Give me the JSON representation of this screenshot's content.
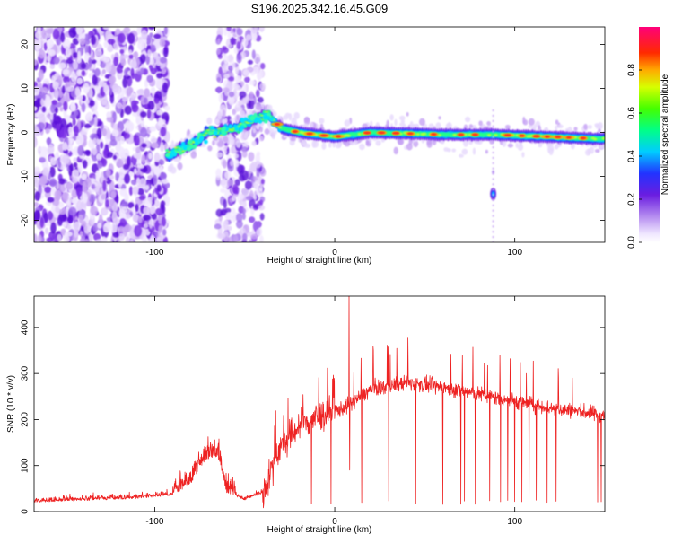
{
  "title": "S196.2025.342.16.45.G09",
  "colors": {
    "snr_line": "#ee2222",
    "axis": "#000000"
  },
  "chart_data": [
    {
      "type": "heatmap",
      "name": "spectrogram",
      "xlabel": "Height of straight line (km)",
      "ylabel": "Frequency (Hz)",
      "xlim": [
        -167,
        150
      ],
      "ylim": [
        -25,
        24
      ],
      "xticks": [
        -100,
        0,
        100
      ],
      "xtick_labels": [
        "-100",
        "0",
        "100"
      ],
      "yticks": [
        -20,
        -10,
        0,
        10,
        20
      ],
      "ytick_labels": [
        "-20",
        "-10",
        "0",
        "10",
        "20"
      ],
      "colorbar": {
        "label": "Normalized spectral amplitude",
        "range": [
          0.0,
          1.0
        ],
        "ticks": [
          0.0,
          0.2,
          0.4,
          0.6,
          0.8
        ],
        "tick_labels": [
          "0.0",
          "0.2",
          "0.4",
          "0.6",
          "0.8"
        ],
        "colormap": "rainbow (purple to red)"
      },
      "features": {
        "noise_region_km": [
          -167,
          -93
        ],
        "noise_region_2_km": [
          -65,
          -40
        ],
        "signal_track": [
          {
            "x": -92,
            "y": -5
          },
          {
            "x": -80,
            "y": -3
          },
          {
            "x": -70,
            "y": 0
          },
          {
            "x": -55,
            "y": 1
          },
          {
            "x": -45,
            "y": 3
          },
          {
            "x": -37,
            "y": 4
          },
          {
            "x": -30,
            "y": 1
          },
          {
            "x": -20,
            "y": 0
          },
          {
            "x": 0,
            "y": -1
          },
          {
            "x": 20,
            "y": 0
          },
          {
            "x": 60,
            "y": -0.5
          },
          {
            "x": 88,
            "y": -0.5
          },
          {
            "x": 120,
            "y": -1
          },
          {
            "x": 150,
            "y": -1.5
          }
        ],
        "isolated_blob": {
          "x": 88,
          "y": -14
        }
      }
    },
    {
      "type": "line",
      "name": "snr",
      "xlabel": "Height of straight line (km)",
      "ylabel": "SNR (10 * v/v)",
      "xlim": [
        -167,
        150
      ],
      "ylim": [
        0,
        468
      ],
      "xticks": [
        -100,
        0,
        100
      ],
      "xtick_labels": [
        "-100",
        "0",
        "100"
      ],
      "yticks": [
        0,
        100,
        200,
        300,
        400
      ],
      "ytick_labels": [
        "0",
        "100",
        "200",
        "300",
        "400"
      ],
      "envelope": [
        {
          "x": -167,
          "y": 20
        },
        {
          "x": -110,
          "y": 28
        },
        {
          "x": -90,
          "y": 35
        },
        {
          "x": -80,
          "y": 60
        },
        {
          "x": -72,
          "y": 110
        },
        {
          "x": -65,
          "y": 120
        },
        {
          "x": -60,
          "y": 40
        },
        {
          "x": -50,
          "y": 25
        },
        {
          "x": -40,
          "y": 40
        },
        {
          "x": -32,
          "y": 130
        },
        {
          "x": -20,
          "y": 185
        },
        {
          "x": -10,
          "y": 205
        },
        {
          "x": 5,
          "y": 225
        },
        {
          "x": 20,
          "y": 265
        },
        {
          "x": 40,
          "y": 280
        },
        {
          "x": 60,
          "y": 270
        },
        {
          "x": 80,
          "y": 255
        },
        {
          "x": 100,
          "y": 240
        },
        {
          "x": 120,
          "y": 225
        },
        {
          "x": 150,
          "y": 210
        }
      ],
      "spike": {
        "x": 8,
        "y": 468
      },
      "dropouts_x": [
        -13,
        -2,
        15,
        30,
        45,
        60,
        70,
        72,
        78,
        86,
        92,
        96,
        100,
        104,
        108,
        112,
        118,
        123,
        146,
        148
      ]
    }
  ]
}
